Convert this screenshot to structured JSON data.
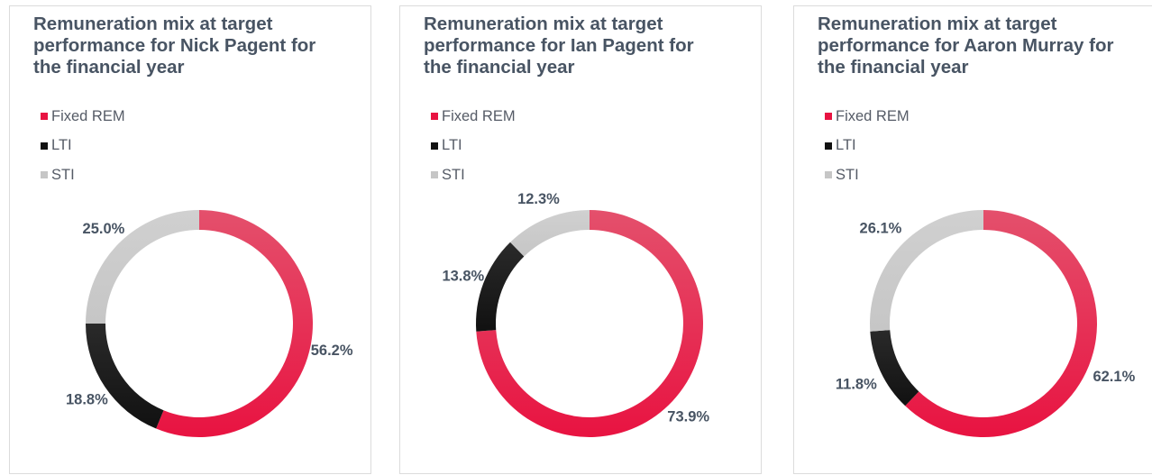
{
  "colors": {
    "Fixed REM": "#e81341",
    "LTI": "#111111",
    "STI": "#c6c6c6"
  },
  "chart_data": [
    {
      "type": "donut",
      "title": "Remuneration mix at target performance for Nick Pagent for the financial year",
      "legend": [
        "Fixed REM",
        "LTI",
        "STI"
      ],
      "legend_position": "top-left",
      "slices": [
        {
          "name": "Fixed REM",
          "value": 56.2,
          "label": "56.2%"
        },
        {
          "name": "LTI",
          "value": 18.8,
          "label": "18.8%"
        },
        {
          "name": "STI",
          "value": 25.0,
          "label": "25.0%"
        }
      ]
    },
    {
      "type": "donut",
      "title": "Remuneration mix at target performance for Ian Pagent for the financial year",
      "legend": [
        "Fixed REM",
        "LTI",
        "STI"
      ],
      "legend_position": "top-left",
      "slices": [
        {
          "name": "Fixed REM",
          "value": 73.9,
          "label": "73.9%"
        },
        {
          "name": "LTI",
          "value": 13.8,
          "label": "13.8%"
        },
        {
          "name": "STI",
          "value": 12.3,
          "label": "12.3%"
        }
      ]
    },
    {
      "type": "donut",
      "title": "Remuneration mix at target performance for Aaron Murray for the financial year",
      "legend": [
        "Fixed REM",
        "LTI",
        "STI"
      ],
      "legend_position": "top-left",
      "slices": [
        {
          "name": "Fixed REM",
          "value": 62.1,
          "label": "62.1%"
        },
        {
          "name": "LTI",
          "value": 11.8,
          "label": "11.8%"
        },
        {
          "name": "STI",
          "value": 26.1,
          "label": "26.1%"
        }
      ]
    }
  ]
}
